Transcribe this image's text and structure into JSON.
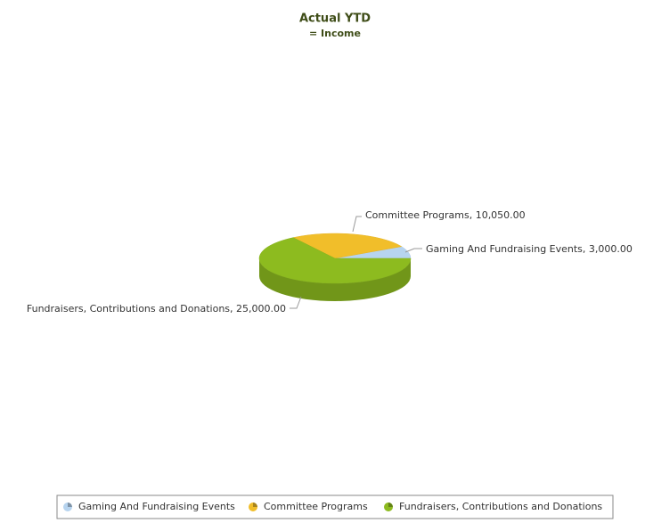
{
  "chart_data": {
    "type": "pie3d",
    "title": "Actual YTD",
    "subtitle": "= Income",
    "categories": [
      "Gaming And Fundraising Events",
      "Committee Programs",
      "Fundraisers, Contributions and Donations"
    ],
    "values": [
      3000,
      10050,
      25000
    ],
    "value_labels": [
      "Gaming And Fundraising Events, 3,000.00",
      "Committee Programs, 10,050.00",
      "Fundraisers, Contributions and Donations, 25,000.00"
    ],
    "colors": [
      "#b7d4ef",
      "#f1be2a",
      "#8dbb1f"
    ],
    "legend": "bottom"
  }
}
